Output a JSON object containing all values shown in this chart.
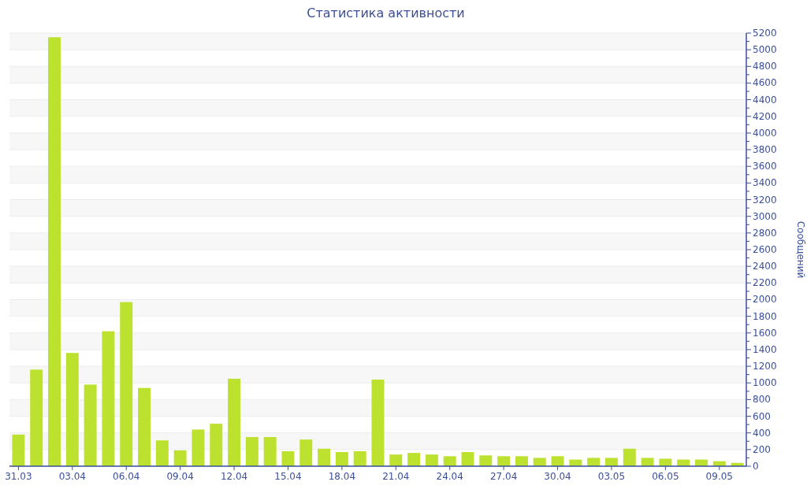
{
  "chart_data": {
    "type": "bar",
    "title": "Статистика активности",
    "ylabel": "Сообщений",
    "categories": [
      "31.03",
      null,
      null,
      "03.04",
      null,
      null,
      "06.04",
      null,
      null,
      "09.04",
      null,
      null,
      "12.04",
      null,
      null,
      "15.04",
      null,
      null,
      "18.04",
      null,
      null,
      "21.04",
      null,
      null,
      "24.04",
      null,
      null,
      "27.04",
      null,
      null,
      "30.04",
      null,
      null,
      "03.05",
      null,
      null,
      "06.05",
      null,
      null,
      "09.05",
      null
    ],
    "values": [
      380,
      1160,
      5150,
      1360,
      980,
      1620,
      1970,
      940,
      310,
      190,
      440,
      510,
      1050,
      350,
      350,
      180,
      320,
      210,
      170,
      180,
      1040,
      140,
      160,
      140,
      120,
      170,
      130,
      120,
      120,
      100,
      120,
      80,
      100,
      100,
      210,
      100,
      90,
      80,
      80,
      60,
      40
    ],
    "color": "#bce22f",
    "ylim": [
      0,
      5200
    ],
    "yticks": [
      0,
      {
        "value": 100,
        "label": null
      },
      200,
      {
        "value": 300,
        "label": null
      },
      400,
      {
        "value": 500,
        "label": null
      },
      600,
      {
        "value": 700,
        "label": null
      },
      800,
      {
        "value": 900,
        "label": null
      },
      1000,
      {
        "value": 1100,
        "label": null
      },
      1200,
      {
        "value": 1300,
        "label": null
      },
      1400,
      {
        "value": 1500,
        "label": null
      },
      1600,
      {
        "value": 1700,
        "label": null
      },
      1800,
      {
        "value": 1900,
        "label": null
      },
      2000,
      {
        "value": 2100,
        "label": null
      },
      2200,
      {
        "value": 2300,
        "label": null
      },
      2400,
      {
        "value": 2500,
        "label": null
      },
      2600,
      {
        "value": 2700,
        "label": null
      },
      2800,
      {
        "value": 2900,
        "label": null
      },
      3000,
      {
        "value": 3100,
        "label": null
      },
      3200,
      {
        "value": 3300,
        "label": null
      },
      3400,
      {
        "value": 3500,
        "label": null
      },
      3600,
      {
        "value": 3700,
        "label": null
      },
      3800,
      {
        "value": 3900,
        "label": null
      },
      4000,
      {
        "value": 4100,
        "label": null
      },
      4200,
      {
        "value": 4300,
        "label": null
      },
      4400,
      {
        "value": 4500,
        "label": null
      },
      4600,
      {
        "value": 4700,
        "label": null
      },
      4800,
      {
        "value": 4900,
        "label": null
      },
      5000,
      {
        "value": 5100,
        "label": null
      },
      5200
    ],
    "grid": "y"
  }
}
